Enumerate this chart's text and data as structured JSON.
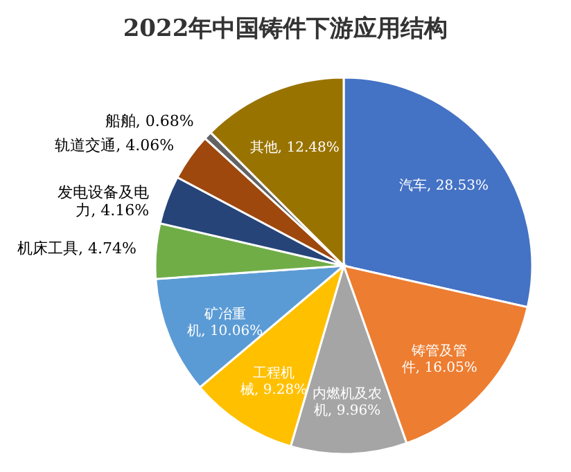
{
  "chart_data": {
    "type": "pie",
    "title": "2022年中国铸件下游应用结构",
    "categories": [
      "汽车",
      "铸管及管件",
      "内燃机及农机",
      "工程机械",
      "矿冶重机",
      "机床工具",
      "发电设备及电力",
      "轨道交通",
      "船舶",
      "其他"
    ],
    "values": [
      28.53,
      16.05,
      9.96,
      9.28,
      10.06,
      4.74,
      4.16,
      4.06,
      0.68,
      12.48
    ],
    "value_labels": [
      "28.53%",
      "16.05%",
      "9.96%",
      "9.28%",
      "10.06%",
      "4.74%",
      "4.16%",
      "4.06%",
      "0.68%",
      "12.48%"
    ],
    "colors": [
      "#4472c4",
      "#ed7d31",
      "#a5a5a5",
      "#ffc000",
      "#5b9bd5",
      "#70ad47",
      "#264478",
      "#9e480e",
      "#636363",
      "#997300"
    ]
  }
}
